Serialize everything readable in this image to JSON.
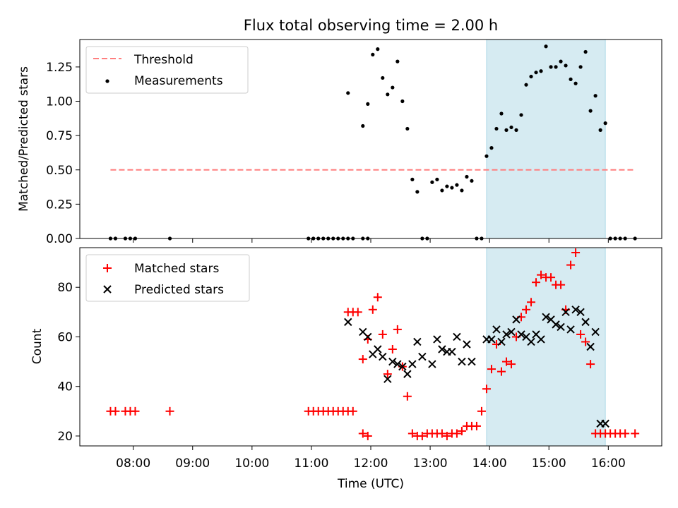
{
  "chart_data": [
    {
      "type": "scatter",
      "title": "Flux total observing time = 2.00 h",
      "xlabel": "",
      "ylabel": "Matched/Predicted stars",
      "xlim_hours": [
        7.1,
        16.9
      ],
      "ylim": [
        0,
        1.45
      ],
      "yticks": [
        "0.00",
        "0.25",
        "0.50",
        "0.75",
        "1.00",
        "1.25"
      ],
      "ytick_values": [
        0,
        0.25,
        0.5,
        0.75,
        1.0,
        1.25
      ],
      "highlight_span": [
        "13:57",
        "15:57"
      ],
      "legend_position": "upper left",
      "threshold": {
        "name": "Threshold",
        "y": 0.5,
        "x_start": "07:37",
        "x_end": "16:27",
        "color": "#ff7f7f"
      },
      "series": [
        {
          "name": "Measurements",
          "color": "#000000",
          "x": [
            "07:37",
            "07:42",
            "07:52",
            "07:57",
            "08:02",
            "08:37",
            "10:57",
            "11:02",
            "11:07",
            "11:12",
            "11:17",
            "11:22",
            "11:27",
            "11:32",
            "11:37",
            "11:42",
            "11:52",
            "11:57",
            "11:37",
            "11:52",
            "11:57",
            "12:02",
            "12:07",
            "12:12",
            "12:17",
            "12:22",
            "12:27",
            "12:32",
            "12:37",
            "12:42",
            "12:47",
            "12:52",
            "12:57",
            "13:02",
            "13:07",
            "13:12",
            "13:17",
            "13:22",
            "13:27",
            "13:32",
            "13:37",
            "13:42",
            "13:47",
            "13:52",
            "13:57",
            "14:02",
            "14:07",
            "14:12",
            "14:17",
            "14:22",
            "14:27",
            "14:32",
            "14:37",
            "14:42",
            "14:47",
            "14:52",
            "14:57",
            "15:02",
            "15:07",
            "15:12",
            "15:17",
            "15:22",
            "15:27",
            "15:32",
            "15:37",
            "15:42",
            "15:47",
            "15:52",
            "15:57",
            "16:02",
            "16:07",
            "16:12",
            "16:17",
            "16:27"
          ],
          "y": [
            0,
            0,
            0,
            0,
            0,
            0,
            0,
            0,
            0,
            0,
            0,
            0,
            0,
            0,
            0,
            0,
            0,
            0,
            1.06,
            0.82,
            0.98,
            1.34,
            1.38,
            1.17,
            1.05,
            1.1,
            1.29,
            1.0,
            0.8,
            0.43,
            0.34,
            0,
            0,
            0.41,
            0.43,
            0.35,
            0.38,
            0.37,
            0.39,
            0.35,
            0.45,
            0.42,
            0,
            0,
            0.6,
            0.66,
            0.8,
            0.91,
            0.79,
            0.81,
            0.79,
            0.9,
            1.12,
            1.18,
            1.21,
            1.22,
            1.4,
            1.25,
            1.25,
            1.29,
            1.26,
            1.16,
            1.13,
            1.25,
            1.36,
            0.93,
            1.04,
            0.79,
            0.84,
            0,
            0,
            0,
            0,
            0
          ]
        }
      ]
    },
    {
      "type": "scatter",
      "title": "",
      "xlabel": "Time (UTC)",
      "ylabel": "Count",
      "xlim_hours": [
        7.1,
        16.9
      ],
      "ylim": [
        16,
        96
      ],
      "yticks": [
        "20",
        "40",
        "60",
        "80"
      ],
      "ytick_values": [
        20,
        40,
        60,
        80
      ],
      "xticks": [
        "08:00",
        "09:00",
        "10:00",
        "11:00",
        "12:00",
        "13:00",
        "14:00",
        "15:00",
        "16:00"
      ],
      "xtick_values_hours": [
        8,
        9,
        10,
        11,
        12,
        13,
        14,
        15,
        16
      ],
      "highlight_span": [
        "13:57",
        "15:57"
      ],
      "legend_position": "upper left",
      "series": [
        {
          "name": "Matched stars",
          "marker": "+",
          "color": "#ff0000",
          "x": [
            "07:37",
            "07:42",
            "07:52",
            "07:57",
            "08:02",
            "08:37",
            "10:57",
            "11:02",
            "11:07",
            "11:12",
            "11:17",
            "11:22",
            "11:27",
            "11:32",
            "11:37",
            "11:42",
            "11:52",
            "11:57",
            "11:37",
            "11:42",
            "11:47",
            "11:52",
            "11:57",
            "12:02",
            "12:07",
            "12:12",
            "12:17",
            "12:22",
            "12:27",
            "12:32",
            "12:37",
            "12:42",
            "12:47",
            "12:52",
            "12:57",
            "13:02",
            "13:07",
            "13:12",
            "13:17",
            "13:22",
            "13:27",
            "13:32",
            "13:37",
            "13:42",
            "13:47",
            "13:52",
            "13:57",
            "14:02",
            "14:07",
            "14:12",
            "14:17",
            "14:22",
            "14:27",
            "14:32",
            "14:37",
            "14:42",
            "14:47",
            "14:52",
            "14:57",
            "15:02",
            "15:07",
            "15:12",
            "15:17",
            "15:22",
            "15:27",
            "15:32",
            "15:37",
            "15:42",
            "15:47",
            "15:52",
            "15:57",
            "16:02",
            "16:07",
            "16:12",
            "16:17",
            "16:27"
          ],
          "y": [
            30,
            30,
            30,
            30,
            30,
            30,
            30,
            30,
            30,
            30,
            30,
            30,
            30,
            30,
            30,
            30,
            21,
            20,
            70,
            70,
            70,
            51,
            59,
            71,
            76,
            61,
            45,
            55,
            63,
            48,
            36,
            21,
            20,
            20,
            21,
            21,
            21,
            21,
            20,
            21,
            21,
            22,
            24,
            24,
            24,
            30,
            39,
            47,
            57,
            46,
            50,
            49,
            60,
            68,
            71,
            74,
            82,
            85,
            84,
            84,
            81,
            81,
            71,
            89,
            94,
            61,
            58,
            49,
            21,
            21,
            21,
            21,
            21,
            21,
            21,
            21
          ],
          "note": ""
        },
        {
          "name": "Predicted stars",
          "marker": "x",
          "color": "#000000",
          "x": [
            "11:37",
            "11:52",
            "11:57",
            "12:02",
            "12:07",
            "12:12",
            "12:17",
            "12:22",
            "12:27",
            "12:32",
            "12:37",
            "12:42",
            "12:47",
            "12:52",
            "13:02",
            "13:07",
            "13:12",
            "13:17",
            "13:22",
            "13:27",
            "13:32",
            "13:37",
            "13:42",
            "13:57",
            "14:02",
            "14:07",
            "14:12",
            "14:17",
            "14:22",
            "14:27",
            "14:32",
            "14:37",
            "14:42",
            "14:47",
            "14:52",
            "14:57",
            "15:02",
            "15:07",
            "15:12",
            "15:17",
            "15:22",
            "15:27",
            "15:32",
            "15:37",
            "15:42",
            "15:47",
            "15:52",
            "15:57"
          ],
          "y": [
            66,
            62,
            60,
            53,
            55,
            52,
            43,
            50,
            49,
            48,
            45,
            49,
            58,
            52,
            49,
            59,
            55,
            54,
            54,
            60,
            50,
            57,
            50,
            59,
            59,
            63,
            58,
            61,
            62,
            67,
            61,
            60,
            58,
            61,
            59,
            68,
            67,
            65,
            64,
            70,
            63,
            71,
            70,
            66,
            56,
            62,
            25,
            25
          ]
        }
      ]
    }
  ]
}
